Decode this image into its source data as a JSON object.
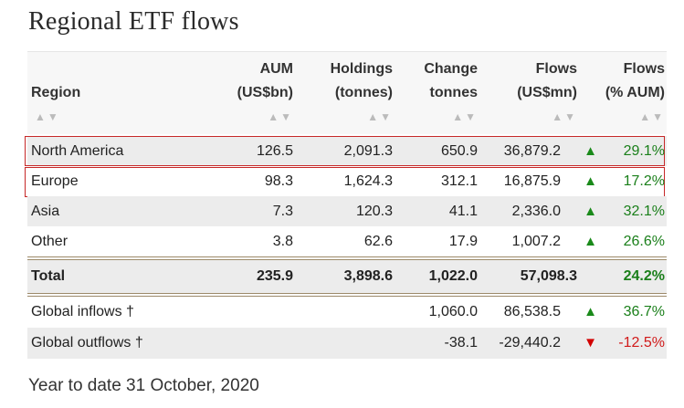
{
  "title": "Regional ETF flows",
  "columns": {
    "region": "Region",
    "aum_1": "AUM",
    "aum_2": "(US$bn)",
    "holdings_1": "Holdings",
    "holdings_2": "(tonnes)",
    "change_1": "Change",
    "change_2": "tonnes",
    "flows_1": "Flows",
    "flows_2": "(US$mn)",
    "flowspct_1": "Flows",
    "flowspct_2": "(% AUM)"
  },
  "sort_glyph": "▲▼",
  "rows": [
    {
      "region": "North America",
      "aum": "126.5",
      "holdings": "2,091.3",
      "change": "650.9",
      "flows": "36,879.2",
      "trend": "▲",
      "pct": "29.1%"
    },
    {
      "region": "Europe",
      "aum": "98.3",
      "holdings": "1,624.3",
      "change": "312.1",
      "flows": "16,875.9",
      "trend": "▲",
      "pct": "17.2%"
    },
    {
      "region": "Asia",
      "aum": "7.3",
      "holdings": "120.3",
      "change": "41.1",
      "flows": "2,336.0",
      "trend": "▲",
      "pct": "32.1%"
    },
    {
      "region": "Other",
      "aum": "3.8",
      "holdings": "62.6",
      "change": "17.9",
      "flows": "1,007.2",
      "trend": "▲",
      "pct": "26.6%"
    }
  ],
  "total": {
    "region": "Total",
    "aum": "235.9",
    "holdings": "3,898.6",
    "change": "1,022.0",
    "flows": "57,098.3",
    "pct": "24.2%"
  },
  "global": [
    {
      "region": "Global inflows †",
      "change": "1,060.0",
      "flows": "86,538.5",
      "trend": "▲",
      "pct": "36.7%"
    },
    {
      "region": "Global outflows †",
      "change": "-38.1",
      "flows": "-29,440.2",
      "trend": "▼",
      "pct": "-12.5%"
    }
  ],
  "footnote": "Year to date 31 October, 2020",
  "colors": {
    "positive": "#1a7f1a",
    "negative": "#d11a1a",
    "highlight_border": "#c62828"
  }
}
